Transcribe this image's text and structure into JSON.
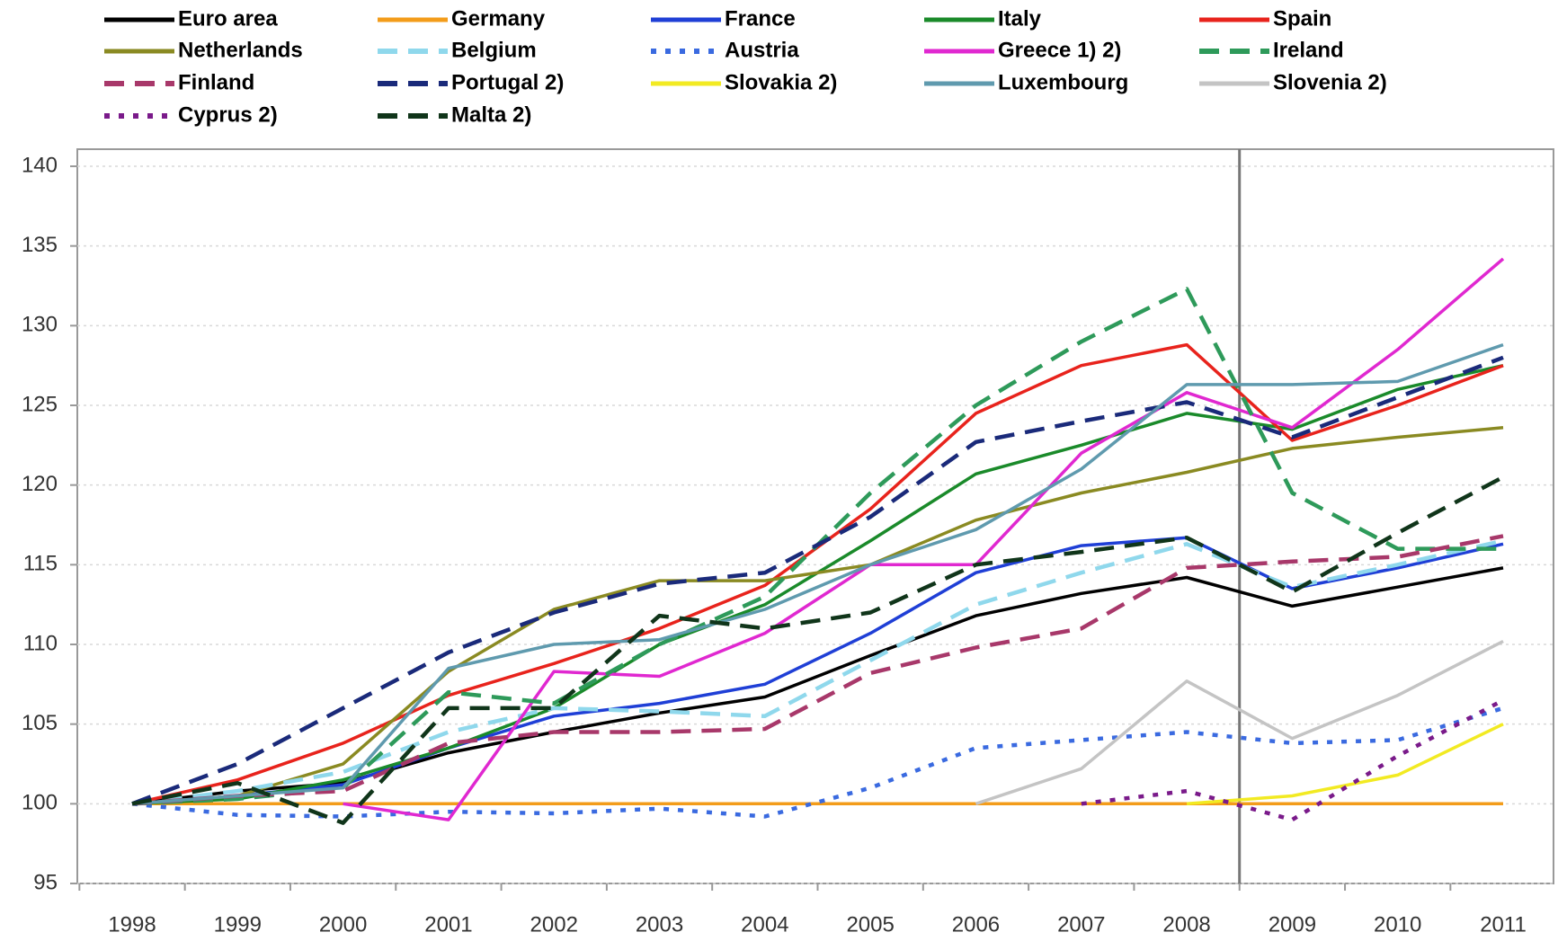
{
  "chart_data": {
    "type": "line",
    "categories": [
      "1998",
      "1999",
      "2000",
      "2001",
      "2002",
      "2003",
      "2004",
      "2005",
      "2006",
      "2007",
      "2008",
      "2009",
      "2010",
      "2011"
    ],
    "ylim": [
      95,
      140
    ],
    "yticks": [
      95,
      100,
      105,
      110,
      115,
      120,
      125,
      130,
      135,
      140
    ],
    "grid": true,
    "series": [
      {
        "name": "Euro area",
        "color": "#000000",
        "dash": "solid",
        "values": [
          100,
          100.8,
          101.3,
          103.2,
          104.5,
          105.7,
          106.7,
          109.3,
          111.8,
          113.2,
          114.2,
          112.4,
          113.6,
          114.8
        ]
      },
      {
        "name": "Germany",
        "color": "#f39c1a",
        "dash": "solid",
        "values": [
          100,
          100,
          100,
          100,
          100,
          100,
          100,
          100,
          100,
          100,
          100,
          100,
          100,
          100
        ]
      },
      {
        "name": "France",
        "color": "#1f3fd6",
        "dash": "solid",
        "values": [
          100,
          100.5,
          101.2,
          103.5,
          105.5,
          106.3,
          107.5,
          110.7,
          114.5,
          116.2,
          116.7,
          113.5,
          114.8,
          116.3
        ]
      },
      {
        "name": "Italy",
        "color": "#1a8a2a",
        "dash": "solid",
        "values": [
          100,
          100.3,
          101.5,
          103.5,
          106.0,
          110.0,
          112.5,
          116.5,
          120.7,
          122.5,
          124.5,
          123.5,
          126.0,
          127.5
        ]
      },
      {
        "name": "Spain",
        "color": "#e8231c",
        "dash": "solid",
        "values": [
          100,
          101.5,
          103.8,
          106.8,
          108.8,
          111.0,
          113.7,
          118.5,
          124.5,
          127.5,
          128.8,
          122.8,
          125.0,
          127.5
        ]
      },
      {
        "name": "Netherlands",
        "color": "#8a8a22",
        "dash": "solid",
        "values": [
          100,
          100.5,
          102.5,
          108.3,
          112.2,
          114.0,
          114.0,
          115.0,
          117.8,
          119.5,
          120.8,
          122.3,
          123.0,
          123.6
        ]
      },
      {
        "name": "Belgium",
        "color": "#8fd8ec",
        "dash": "dashed",
        "values": [
          100,
          100.8,
          102.0,
          104.5,
          106.0,
          105.8,
          105.5,
          109.0,
          112.5,
          114.5,
          116.3,
          113.6,
          115.0,
          116.5
        ]
      },
      {
        "name": "Austria",
        "color": "#3a6ae0",
        "dash": "dotted",
        "values": [
          100,
          99.3,
          99.2,
          99.5,
          99.4,
          99.7,
          99.2,
          101.0,
          103.5,
          104.0,
          104.5,
          103.8,
          104.0,
          106.0
        ]
      },
      {
        "name": "Greece 1) 2)",
        "color": "#e028d0",
        "dash": "solid",
        "values": [
          null,
          null,
          100,
          99,
          108.3,
          108.0,
          110.7,
          115.0,
          115.0,
          122.0,
          125.8,
          123.6,
          128.5,
          134.2
        ]
      },
      {
        "name": "Ireland",
        "color": "#2e9a5a",
        "dash": "dashed",
        "values": [
          100,
          100.3,
          101.0,
          107.0,
          106.3,
          110.0,
          113.0,
          119.5,
          125.0,
          129.0,
          132.3,
          119.5,
          116.0,
          116.0
        ]
      },
      {
        "name": "Finland",
        "color": "#a8386a",
        "dash": "dashed",
        "values": [
          100,
          100.5,
          100.8,
          103.8,
          104.5,
          104.5,
          104.7,
          108.2,
          109.8,
          111.0,
          114.8,
          115.2,
          115.5,
          116.8
        ]
      },
      {
        "name": "Portugal 2)",
        "color": "#1a2a7a",
        "dash": "dashed",
        "values": [
          100,
          102.5,
          106.0,
          109.5,
          112.0,
          113.8,
          114.5,
          118.0,
          122.7,
          124.0,
          125.2,
          123.0,
          125.5,
          128.0
        ]
      },
      {
        "name": "Slovakia 2)",
        "color": "#f2ea22",
        "dash": "solid",
        "values": [
          null,
          null,
          null,
          null,
          null,
          null,
          null,
          null,
          null,
          null,
          100,
          100.5,
          101.8,
          105.0
        ]
      },
      {
        "name": "Luxembourg",
        "color": "#5f9aae",
        "dash": "solid",
        "values": [
          100,
          100.5,
          101.0,
          108.5,
          110.0,
          110.3,
          112.2,
          115.0,
          117.2,
          121.0,
          126.3,
          126.3,
          126.5,
          128.8
        ]
      },
      {
        "name": "Slovenia 2)",
        "color": "#c4c4c4",
        "dash": "solid",
        "values": [
          null,
          null,
          null,
          null,
          null,
          null,
          null,
          null,
          100,
          102.2,
          107.7,
          104.1,
          106.8,
          110.2
        ]
      },
      {
        "name": "Cyprus 2)",
        "color": "#7a1a8a",
        "dash": "dotted",
        "values": [
          null,
          null,
          null,
          null,
          null,
          null,
          null,
          null,
          null,
          100,
          100.8,
          99.0,
          103.0,
          106.5
        ]
      },
      {
        "name": "Malta 2)",
        "color": "#10351a",
        "dash": "dashed",
        "values": [
          100,
          101.3,
          98.8,
          106.0,
          106.0,
          111.8,
          111.0,
          112.0,
          115.0,
          115.8,
          116.7,
          113.3,
          117.0,
          120.5
        ]
      }
    ]
  }
}
